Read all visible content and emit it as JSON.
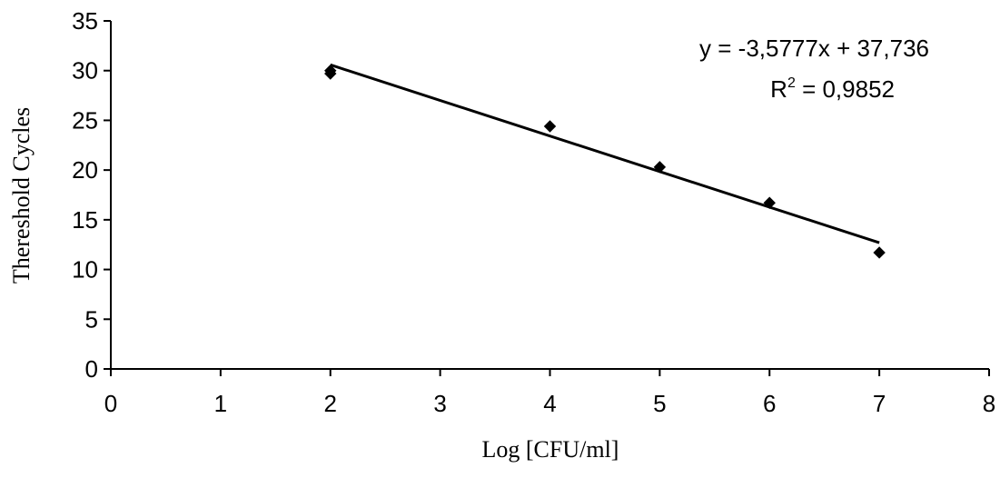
{
  "chart_data": {
    "type": "scatter",
    "title": "",
    "xlabel": "Log [CFU/ml]",
    "ylabel": "Thereshold Cycles",
    "xlim": [
      0,
      8
    ],
    "ylim": [
      0,
      35
    ],
    "xticks": [
      0,
      1,
      2,
      3,
      4,
      5,
      6,
      7,
      8
    ],
    "yticks": [
      0,
      5,
      10,
      15,
      20,
      25,
      30,
      35
    ],
    "xtick_labels": [
      "0",
      "1",
      "2",
      "3",
      "4",
      "5",
      "6",
      "7",
      "8"
    ],
    "ytick_labels": [
      "0",
      "5",
      "10",
      "15",
      "20",
      "25",
      "30",
      "35"
    ],
    "grid": false,
    "legend": "none",
    "series": [
      {
        "marker": "diamond",
        "color": "#000000",
        "points": [
          {
            "x": 2,
            "y": 29.7
          },
          {
            "x": 2,
            "y": 30.0
          },
          {
            "x": 4,
            "y": 24.4
          },
          {
            "x": 5,
            "y": 20.3
          },
          {
            "x": 6,
            "y": 16.7
          },
          {
            "x": 7,
            "y": 11.7
          }
        ]
      }
    ],
    "trendline": {
      "type": "linear",
      "slope": -3.5777,
      "intercept": 37.736,
      "x_range": [
        2,
        7
      ],
      "color": "#000000"
    },
    "annotations": {
      "equation": "y = -3,5777x + 37,736",
      "r2_prefix": "R",
      "r2_superscript": "2",
      "r2_value": " = 0,9852"
    }
  }
}
